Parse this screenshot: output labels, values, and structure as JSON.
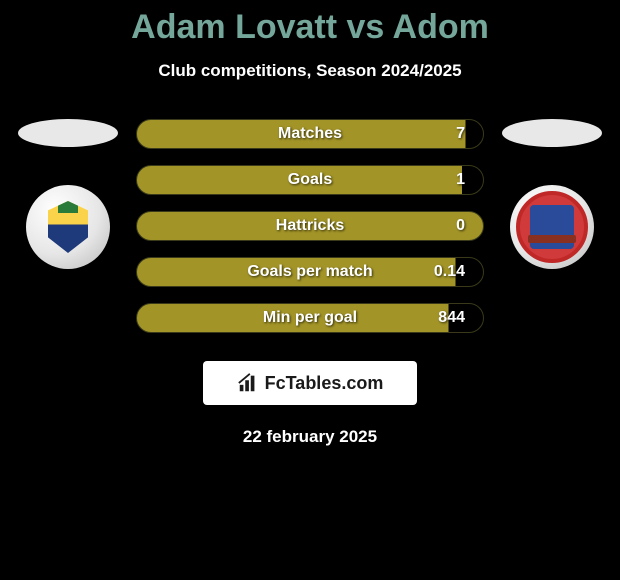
{
  "header": {
    "title": "Adam Lovatt vs Adom",
    "title_color": "#74a69a",
    "subtitle": "Club competitions, Season 2024/2025"
  },
  "stats": {
    "bar_bg": "#a29427",
    "bar_bg_dark": "#000000",
    "rows": [
      {
        "label": "Matches",
        "value": "7",
        "fill_pct": 95
      },
      {
        "label": "Goals",
        "value": "1",
        "fill_pct": 94
      },
      {
        "label": "Hattricks",
        "value": "0",
        "fill_pct": 100
      },
      {
        "label": "Goals per match",
        "value": "0.14",
        "fill_pct": 92
      },
      {
        "label": "Min per goal",
        "value": "844",
        "fill_pct": 90
      }
    ]
  },
  "footer": {
    "logo_text": "FcTables.com",
    "date": "22 february 2025"
  },
  "badges": {
    "left_oval_color": "#e8e8e8",
    "right_oval_color": "#e8e8e8"
  }
}
